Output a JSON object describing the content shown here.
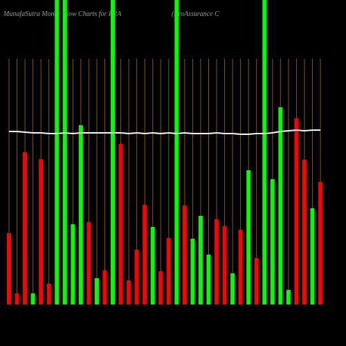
{
  "chart_data": {
    "type": "bar",
    "title": "MunafaSutra  Money Flow  Charts for PRA",
    "subtitle": "(ProAssurance  C",
    "categories": [
      null,
      null,
      null,
      null,
      null,
      null,
      null,
      null,
      null,
      null,
      null,
      null,
      null,
      null,
      null,
      null,
      null,
      null,
      null,
      null,
      null,
      null,
      null,
      null,
      null,
      null,
      null,
      null,
      null,
      null,
      null,
      null,
      null,
      null,
      null,
      null,
      null,
      null,
      null,
      null
    ],
    "ylim": [
      0,
      440
    ],
    "series": [
      {
        "type": "bar",
        "values": [
          103,
          16,
          220,
          16,
          210,
          30,
          440,
          440,
          116,
          259,
          119,
          38,
          49,
          440,
          232,
          35,
          79,
          144,
          112,
          48,
          96,
          440,
          143,
          95,
          128,
          72,
          123,
          113,
          45,
          108,
          194,
          67,
          440,
          181,
          285,
          21,
          269,
          209,
          139,
          177
        ],
        "colors": [
          "#ff0000",
          "#ff0000",
          "#ff0000",
          "#00ff00",
          "#ff0000",
          "#ff0000",
          "#00ff00",
          "#00ff00",
          "#00ff00",
          "#00ff00",
          "#ff0000",
          "#00ff00",
          "#ff0000",
          "#00ff00",
          "#ff0000",
          "#ff0000",
          "#ff0000",
          "#ff0000",
          "#00ff00",
          "#ff0000",
          "#ff0000",
          "#00ff00",
          "#ff0000",
          "#00ff00",
          "#00ff00",
          "#00ff00",
          "#ff0000",
          "#ff0000",
          "#00ff00",
          "#ff0000",
          "#00ff00",
          "#ff0000",
          "#00ff00",
          "#00ff00",
          "#00ff00",
          "#00ff00",
          "#ff0000",
          "#ff0000",
          "#00ff00",
          "#ff0000"
        ]
      },
      {
        "type": "line",
        "color": "#ffffff",
        "values": [
          250,
          250,
          249,
          248,
          248,
          247,
          247,
          248,
          247,
          248,
          248,
          248,
          248,
          248,
          248,
          247,
          248,
          247,
          248,
          247,
          248,
          247,
          248,
          247,
          247,
          247,
          248,
          247,
          247,
          246,
          246,
          247,
          247,
          248,
          250,
          251,
          252,
          251,
          252,
          252
        ]
      }
    ]
  }
}
